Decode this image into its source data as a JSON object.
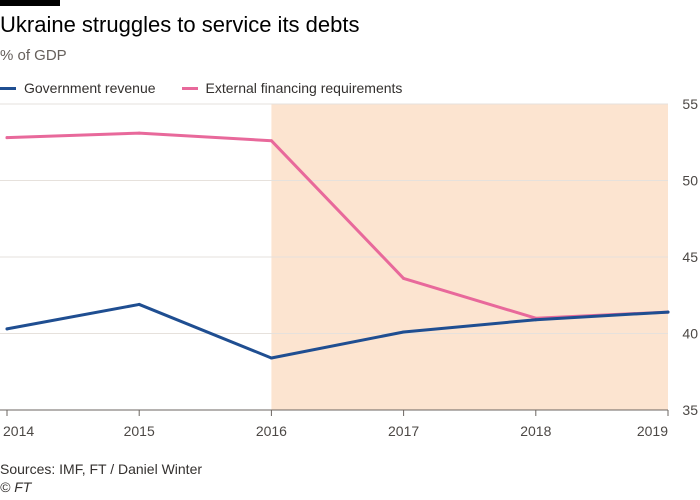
{
  "header": {
    "title": "Ukraine struggles to service its debts",
    "subtitle": "% of GDP"
  },
  "legend": {
    "items": [
      {
        "label": "Government revenue",
        "color": "#1f4e91"
      },
      {
        "label": "External financing requirements",
        "color": "#e8699b"
      }
    ]
  },
  "footer": {
    "source": "Sources: IMF, FT / Daniel Winter",
    "credit": "© FT"
  },
  "chart_data": {
    "type": "line",
    "x": [
      2014,
      2015,
      2016,
      2017,
      2018,
      2019
    ],
    "xtick_labels": [
      "2014",
      "2015",
      "2016",
      "2017",
      "2018",
      "2019"
    ],
    "ylim": [
      35,
      55
    ],
    "yticks": [
      35,
      40,
      45,
      50,
      55
    ],
    "ytick_labels": [
      "35",
      "40",
      "45",
      "50",
      "55"
    ],
    "yaxis_position": "right",
    "grid": true,
    "shaded_region": {
      "x_start": 2016,
      "x_end": 2019,
      "color": "#fce4d0"
    },
    "series": [
      {
        "name": "Government revenue",
        "color": "#1f4e91",
        "values": [
          40.3,
          41.9,
          38.4,
          40.1,
          40.9,
          41.4
        ]
      },
      {
        "name": "External financing requirements",
        "color": "#e8699b",
        "values": [
          52.8,
          53.1,
          52.6,
          43.6,
          41.0,
          41.4
        ]
      }
    ]
  }
}
